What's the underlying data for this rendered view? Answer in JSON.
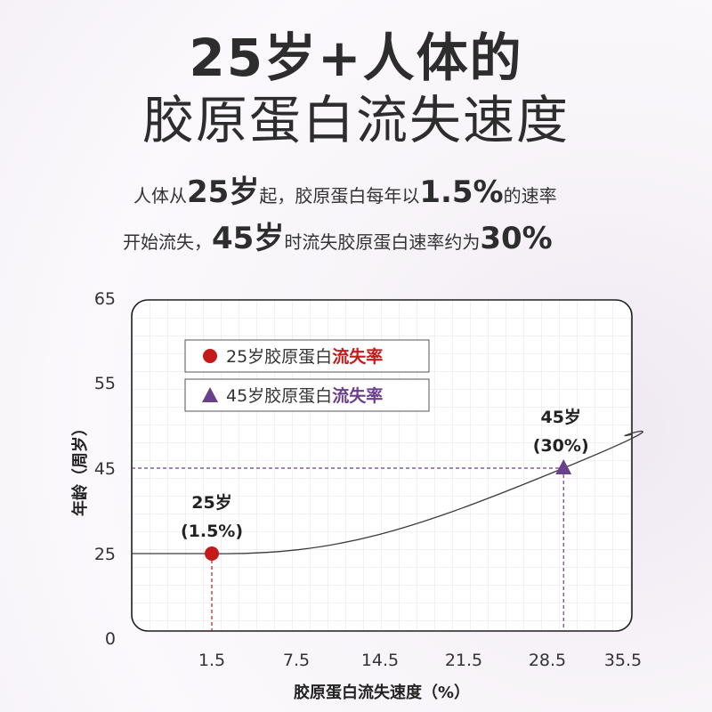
{
  "header": {
    "title_line1": "25岁+人体的",
    "title_line2": "胶原蛋白流失速度",
    "sub1": {
      "a": "人体从",
      "b": "25岁",
      "c": "起，胶原蛋白每年以",
      "d": "1.5%",
      "e": "的速率"
    },
    "sub2": {
      "a": "开始流失，",
      "b": "45岁",
      "c": "时流失胶原蛋白速率约为",
      "d": "30%"
    }
  },
  "chart_data": {
    "type": "line",
    "xlabel": "胶原蛋白流失速度（%）",
    "ylabel": "年龄（周岁）",
    "x_ticks": [
      "1.5",
      "7.5",
      "14.5",
      "21.5",
      "28.5",
      "35.5"
    ],
    "y_ticks": [
      "0",
      "25",
      "45",
      "55",
      "65"
    ],
    "legend": [
      {
        "prefix": "25岁胶原蛋白",
        "highlight": "流失率",
        "marker": "circle",
        "color": "#c41a1a"
      },
      {
        "prefix": "45岁胶原蛋白",
        "highlight": "流失率",
        "marker": "triangle",
        "color": "#6a3f8c"
      }
    ],
    "points": [
      {
        "x": 1.5,
        "y": 25,
        "label1": "25岁",
        "label2": "(1.5%)",
        "marker": "circle",
        "color": "#c41a1a"
      },
      {
        "x": 30,
        "y": 45,
        "label1": "45岁",
        "label2": "(30%)",
        "marker": "triangle",
        "color": "#6a3f8c"
      }
    ],
    "grid": true,
    "legend_placement": "top-left"
  }
}
